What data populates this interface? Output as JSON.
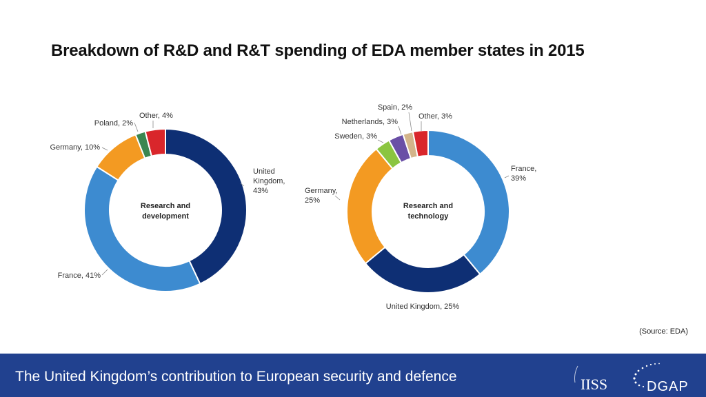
{
  "title": "Breakdown of R&D and R&T spending of EDA member states in 2015",
  "source": "(Source:  EDA)",
  "footer": {
    "title": "The United Kingdom’s contribution to European security and defence",
    "logo1": "IISS",
    "logo2": "DGAP"
  },
  "colors": {
    "uk": "#0e2f74",
    "france": "#3d8bd0",
    "germany": "#f39a22",
    "poland": "#3b8650",
    "other": "#d9262b",
    "sweden": "#8bc540",
    "netherlands": "#6a4fa6",
    "spain": "#d3b48a",
    "footer_bg": "#21418f"
  },
  "chart_data": [
    {
      "type": "pie",
      "title": "Research and development",
      "center_lines": [
        "Research and",
        "development"
      ],
      "start_category": "United Kingdom",
      "direction": "clockwise",
      "categories": [
        "United Kingdom",
        "France",
        "Germany",
        "Poland",
        "Other"
      ],
      "values": [
        43,
        41,
        10,
        2,
        4
      ],
      "labels": [
        {
          "lines": [
            "United",
            "Kingdom,",
            "43%"
          ]
        },
        {
          "lines": [
            "France, 41%"
          ]
        },
        {
          "lines": [
            "Germany, 10%"
          ]
        },
        {
          "lines": [
            "Poland, 2%"
          ]
        },
        {
          "lines": [
            "Other, 4%"
          ]
        }
      ],
      "color_keys": [
        "uk",
        "france",
        "germany",
        "poland",
        "other"
      ]
    },
    {
      "type": "pie",
      "title": "Research and technology",
      "center_lines": [
        "Research and",
        "technology"
      ],
      "start_category": "France",
      "direction": "clockwise",
      "categories": [
        "France",
        "United Kingdom",
        "Germany",
        "Sweden",
        "Netherlands",
        "Spain",
        "Other"
      ],
      "values": [
        39,
        25,
        25,
        3,
        3,
        2,
        3
      ],
      "labels": [
        {
          "lines": [
            "France,",
            "39%"
          ]
        },
        {
          "lines": [
            "United Kingdom, 25%"
          ]
        },
        {
          "lines": [
            "Germany,",
            "25%"
          ]
        },
        {
          "lines": [
            "Sweden, 3%"
          ]
        },
        {
          "lines": [
            "Netherlands, 3%"
          ]
        },
        {
          "lines": [
            "Spain, 2%"
          ]
        },
        {
          "lines": [
            "Other, 3%"
          ]
        }
      ],
      "color_keys": [
        "france",
        "uk",
        "germany",
        "sweden",
        "netherlands",
        "spain",
        "other"
      ]
    }
  ]
}
